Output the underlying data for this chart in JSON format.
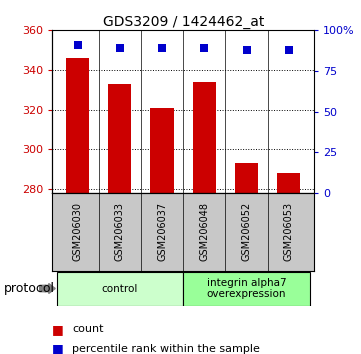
{
  "title": "GDS3209 / 1424462_at",
  "samples": [
    "GSM206030",
    "GSM206033",
    "GSM206037",
    "GSM206048",
    "GSM206052",
    "GSM206053"
  ],
  "counts": [
    346,
    333,
    321,
    334,
    293,
    288
  ],
  "percentile_ranks": [
    91,
    89,
    89,
    89,
    88,
    88
  ],
  "ylim_left": [
    278,
    360
  ],
  "ylim_right": [
    0,
    100
  ],
  "yticks_left": [
    280,
    300,
    320,
    340,
    360
  ],
  "yticks_right": [
    0,
    25,
    50,
    75,
    100
  ],
  "ytick_labels_right": [
    "0",
    "25",
    "50",
    "75",
    "100%"
  ],
  "bar_color": "#cc0000",
  "dot_color": "#0000cc",
  "groups": [
    {
      "label": "control",
      "indices": [
        0,
        1,
        2
      ],
      "color": "#ccffcc"
    },
    {
      "label": "integrin alpha7\noverexpression",
      "indices": [
        3,
        4,
        5
      ],
      "color": "#99ff99"
    }
  ],
  "protocol_label": "protocol",
  "legend_items": [
    {
      "color": "#cc0000",
      "label": "count"
    },
    {
      "color": "#0000cc",
      "label": "percentile rank within the sample"
    }
  ],
  "bg_color": "#ffffff",
  "tick_label_color_left": "#cc0000",
  "tick_label_color_right": "#0000cc",
  "bar_width": 0.55,
  "dot_size": 40,
  "sample_label_bg": "#c8c8c8"
}
